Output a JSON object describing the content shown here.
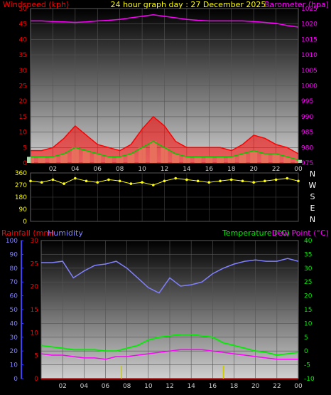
{
  "header": {
    "title": "24 hour graph day : 27 December 2025",
    "wind_label": "Windspeed (kph)",
    "baro_label": "Barometer (hpa)"
  },
  "rain_label": "Rainfall (mm)",
  "humidity_label": "Humidity",
  "temp_label": "Temperature (°C)",
  "dew_label": "Dew Point (°C)",
  "compass": [
    "N",
    "W",
    "S",
    "E",
    "N"
  ],
  "colors": {
    "wind_gust": "#ff0000",
    "wind_avg": "#00cc00",
    "wind_bars": "#ccffcc",
    "barometer": "#ff00ff",
    "direction": "#ffff00",
    "rain": "#ff0000",
    "humidity": "#8080ff",
    "temperature": "#00ee00",
    "dew_point": "#ff00ff",
    "rain_rate": "#cccc00"
  },
  "chart_data": [
    {
      "type": "line",
      "name": "wind-barometer",
      "x_ticks": [
        "02",
        "04",
        "06",
        "08",
        "10",
        "12",
        "14",
        "16",
        "18",
        "20",
        "22",
        "00"
      ],
      "y_left_ticks": [
        "0",
        "5",
        "10",
        "15",
        "20",
        "25",
        "30",
        "35",
        "40",
        "45",
        "50"
      ],
      "y_left_range": [
        0,
        50
      ],
      "y_right_ticks": [
        "975",
        "980",
        "985",
        "990",
        "995",
        "1000",
        "1005",
        "1010",
        "1015",
        "1020",
        "1025"
      ],
      "y_right_range": [
        975,
        1025
      ],
      "grid": true,
      "hours": [
        0,
        1,
        2,
        3,
        4,
        5,
        6,
        7,
        8,
        9,
        10,
        11,
        12,
        13,
        14,
        15,
        16,
        17,
        18,
        19,
        20,
        21,
        22,
        23,
        24
      ],
      "gust": [
        4,
        4,
        5,
        8,
        12,
        9,
        6,
        5,
        4,
        6,
        11,
        15,
        12,
        7,
        5,
        5,
        5,
        5,
        4,
        6,
        9,
        8,
        6,
        5,
        3
      ],
      "average": [
        2,
        2,
        2,
        3,
        5,
        4,
        3,
        2,
        2,
        3,
        5,
        7,
        5,
        3,
        2,
        2,
        2,
        2,
        2,
        3,
        4,
        3,
        3,
        2,
        1
      ],
      "barometer": [
        1021,
        1021,
        1020.8,
        1020.7,
        1020.5,
        1020.7,
        1021,
        1021.2,
        1021.5,
        1022,
        1022.5,
        1023,
        1022.5,
        1022,
        1021.5,
        1021.2,
        1021,
        1021,
        1021,
        1021,
        1020.8,
        1020.5,
        1020.2,
        1019.5,
        1019
      ]
    },
    {
      "type": "scatter",
      "name": "wind-direction",
      "y_ticks": [
        "360",
        "270",
        "180",
        "90",
        "0"
      ],
      "y_range": [
        0,
        360
      ],
      "hours": [
        0,
        1,
        2,
        3,
        4,
        5,
        6,
        7,
        8,
        9,
        10,
        11,
        12,
        13,
        14,
        15,
        16,
        17,
        18,
        19,
        20,
        21,
        22,
        23,
        24
      ],
      "direction": [
        300,
        290,
        310,
        280,
        320,
        300,
        290,
        310,
        300,
        280,
        290,
        270,
        300,
        320,
        310,
        300,
        290,
        300,
        310,
        300,
        290,
        300,
        310,
        320,
        300
      ]
    },
    {
      "type": "line",
      "name": "rain-humidity-temperature",
      "x_ticks": [
        "02",
        "04",
        "06",
        "08",
        "10",
        "12",
        "14",
        "16",
        "18",
        "20",
        "22",
        "00"
      ],
      "y_rain_ticks": [
        "0",
        "5",
        "10",
        "15",
        "20",
        "25",
        "30"
      ],
      "y_rain_range": [
        0,
        30
      ],
      "y_hum_ticks": [
        "0",
        "10",
        "20",
        "30",
        "40",
        "50",
        "60",
        "70",
        "80",
        "90",
        "100"
      ],
      "y_hum_range": [
        0,
        100
      ],
      "y_temp_ticks": [
        "-10",
        "-5",
        "0",
        "5",
        "10",
        "15",
        "20",
        "25",
        "30",
        "35",
        "40"
      ],
      "y_temp_range": [
        -10,
        40
      ],
      "grid": true,
      "hours": [
        0,
        1,
        2,
        3,
        4,
        5,
        6,
        7,
        8,
        9,
        10,
        11,
        12,
        13,
        14,
        15,
        16,
        17,
        18,
        19,
        20,
        21,
        22,
        23,
        24
      ],
      "rain": [
        0,
        0,
        0,
        0,
        0,
        0,
        0,
        0,
        0,
        0,
        0,
        0,
        0,
        0,
        0,
        0,
        0,
        0,
        0,
        0,
        0,
        0,
        0,
        0,
        0
      ],
      "humidity": [
        84,
        84,
        85,
        73,
        78,
        82,
        83,
        85,
        80,
        73,
        66,
        62,
        73,
        67,
        68,
        70,
        76,
        80,
        83,
        85,
        86,
        85,
        85,
        87,
        85
      ],
      "temperature": [
        2,
        1.5,
        1,
        0.5,
        0.5,
        0.5,
        0,
        0,
        1,
        2,
        4,
        5,
        5.5,
        6,
        6,
        5.5,
        5,
        3,
        2,
        1,
        0,
        -0.5,
        -1.5,
        -1,
        -0.5
      ],
      "dew_point": [
        -1,
        -1.5,
        -1.5,
        -2,
        -2.5,
        -2.5,
        -3,
        -2,
        -2,
        -1.5,
        -1,
        -0.5,
        0,
        0.5,
        0.5,
        0.5,
        0,
        -0.5,
        -1,
        -1.5,
        -2,
        -2.5,
        -3,
        -3,
        -3
      ]
    }
  ]
}
